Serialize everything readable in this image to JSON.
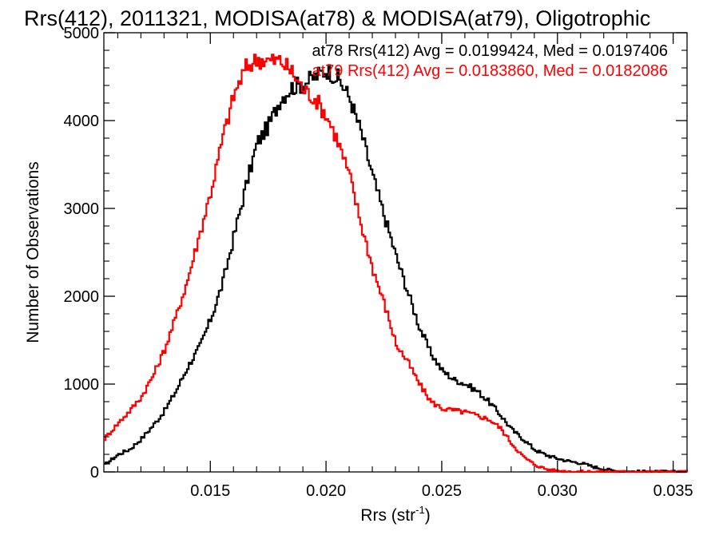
{
  "chart_data": {
    "type": "line",
    "title": "Rrs(412), 2011321, MODISA(at78) & MODISA(at79), Oligotrophic",
    "xlabel": "Rrs (str",
    "xlabel_sup": "-1",
    "xlabel_end": ")",
    "ylabel": "Number of Observations",
    "xlim": [
      0.0104,
      0.0356
    ],
    "ylim": [
      0,
      5000
    ],
    "x_ticks": [
      0.015,
      0.02,
      0.025,
      0.03,
      0.035
    ],
    "x_tick_labels": [
      "0.015",
      "0.020",
      "0.025",
      "0.030",
      "0.035"
    ],
    "y_ticks": [
      0,
      1000,
      2000,
      3000,
      4000,
      5000
    ],
    "y_tick_labels": [
      "0",
      "1000",
      "2000",
      "3000",
      "4000",
      "5000"
    ],
    "grid": false,
    "legend_position": "top-right",
    "series": [
      {
        "name": "at78",
        "label": "at78 Rrs(412) Avg = 0.0199424, Med = 0.0197406",
        "color": "#000000",
        "x": [
          0.0104,
          0.011,
          0.0115,
          0.012,
          0.0125,
          0.013,
          0.0135,
          0.014,
          0.0145,
          0.015,
          0.0155,
          0.016,
          0.0165,
          0.017,
          0.0175,
          0.018,
          0.0185,
          0.019,
          0.0195,
          0.02,
          0.0205,
          0.021,
          0.0215,
          0.022,
          0.0225,
          0.023,
          0.0235,
          0.024,
          0.0245,
          0.025,
          0.0255,
          0.026,
          0.0265,
          0.027,
          0.0275,
          0.028,
          0.0285,
          0.029,
          0.0295,
          0.03,
          0.0305,
          0.031,
          0.0315,
          0.032,
          0.0325,
          0.033,
          0.034,
          0.0356
        ],
        "values": [
          80,
          200,
          260,
          380,
          530,
          700,
          930,
          1200,
          1420,
          1750,
          2150,
          2700,
          3250,
          3750,
          3950,
          4250,
          4380,
          4420,
          4500,
          4580,
          4480,
          4250,
          3850,
          3350,
          2900,
          2450,
          2050,
          1650,
          1350,
          1150,
          1050,
          1000,
          920,
          800,
          650,
          480,
          370,
          250,
          190,
          150,
          120,
          100,
          60,
          30,
          12,
          5,
          2,
          0
        ]
      },
      {
        "name": "at79",
        "label": "at79 Rrs(412) Avg = 0.0183860, Med = 0.0182086",
        "color": "#ff0000",
        "x": [
          0.0104,
          0.011,
          0.0115,
          0.012,
          0.0125,
          0.013,
          0.0135,
          0.014,
          0.0145,
          0.015,
          0.0155,
          0.016,
          0.0165,
          0.017,
          0.0175,
          0.018,
          0.0185,
          0.019,
          0.0195,
          0.02,
          0.0205,
          0.021,
          0.0215,
          0.022,
          0.0225,
          0.023,
          0.0235,
          0.024,
          0.0245,
          0.025,
          0.0255,
          0.026,
          0.0265,
          0.027,
          0.0275,
          0.028,
          0.0285,
          0.029,
          0.0295,
          0.03,
          0.031,
          0.033,
          0.0356
        ],
        "values": [
          380,
          560,
          700,
          860,
          1100,
          1400,
          1780,
          2200,
          2700,
          3200,
          3800,
          4300,
          4600,
          4700,
          4680,
          4680,
          4550,
          4350,
          4250,
          4050,
          3750,
          3350,
          2800,
          2300,
          1900,
          1450,
          1250,
          1000,
          800,
          720,
          700,
          680,
          640,
          600,
          500,
          320,
          170,
          80,
          30,
          10,
          3,
          1,
          0
        ]
      }
    ]
  }
}
